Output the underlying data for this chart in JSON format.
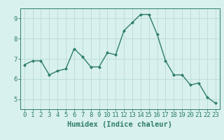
{
  "x": [
    0,
    1,
    2,
    3,
    4,
    5,
    6,
    7,
    8,
    9,
    10,
    11,
    12,
    13,
    14,
    15,
    16,
    17,
    18,
    19,
    20,
    21,
    22,
    23
  ],
  "y": [
    6.7,
    6.9,
    6.9,
    6.2,
    6.4,
    6.5,
    7.5,
    7.1,
    6.6,
    6.6,
    7.3,
    7.2,
    8.4,
    8.8,
    9.2,
    9.2,
    8.2,
    6.9,
    6.2,
    6.2,
    5.7,
    5.8,
    5.1,
    4.8
  ],
  "line_color": "#2e7d6e",
  "marker": "D",
  "marker_size": 2.0,
  "bg_color": "#d8f0ee",
  "grid_color": "#b8dbd8",
  "axis_color": "#2e7d6e",
  "xlabel": "Humidex (Indice chaleur)",
  "xlim": [
    -0.5,
    23.5
  ],
  "ylim": [
    4.5,
    9.5
  ],
  "yticks": [
    5,
    6,
    7,
    8,
    9
  ],
  "xticks": [
    0,
    1,
    2,
    3,
    4,
    5,
    6,
    7,
    8,
    9,
    10,
    11,
    12,
    13,
    14,
    15,
    16,
    17,
    18,
    19,
    20,
    21,
    22,
    23
  ],
  "tick_fontsize": 6.5,
  "xlabel_fontsize": 7.5,
  "line_width": 1.0
}
